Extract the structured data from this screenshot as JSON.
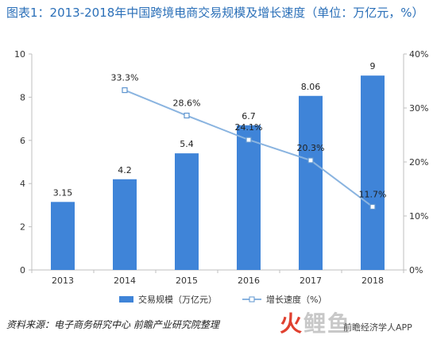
{
  "title": "图表1：2013-2018年中国跨境电商交易规模及增长速度（单位：万亿元，%）",
  "source": "资料来源：电子商务研究中心 前瞻产业研究院整理",
  "watermark": {
    "logo_prefix": "火",
    "logo_rest": "鲤鱼",
    "text": "前瞻经济学人APP"
  },
  "colors": {
    "bar": "#3f84d8",
    "line": "#8ab4e0",
    "marker_fill": "#ffffff",
    "marker_stroke": "#5e95cf",
    "title": "#2a6fb8",
    "grid": "#d9d9d9"
  },
  "chart_data": {
    "type": "bar+line",
    "categories": [
      "2013",
      "2014",
      "2015",
      "2016",
      "2017",
      "2018"
    ],
    "series": [
      {
        "name": "交易规模（万亿元）",
        "type": "bar",
        "axis": "left",
        "values": [
          3.15,
          4.2,
          5.4,
          6.7,
          8.06,
          9
        ],
        "labels": [
          "3.15",
          "4.2",
          "5.4",
          "6.7",
          "8.06",
          "9"
        ]
      },
      {
        "name": "增长速度（%）",
        "type": "line",
        "axis": "right",
        "values": [
          null,
          33.3,
          28.6,
          24.1,
          20.3,
          11.7
        ],
        "labels": [
          "",
          "33.3%",
          "28.6%",
          "24.1%",
          "20.3%",
          "11.7%"
        ]
      }
    ],
    "y_left": {
      "min": 0,
      "max": 10,
      "ticks": [
        "0",
        "2",
        "4",
        "6",
        "8",
        "10"
      ]
    },
    "y_right": {
      "min": 0,
      "max": 40,
      "ticks": [
        "0%",
        "10%",
        "20%",
        "30%",
        "40%"
      ]
    },
    "grid": false,
    "legend_position": "bottom"
  }
}
